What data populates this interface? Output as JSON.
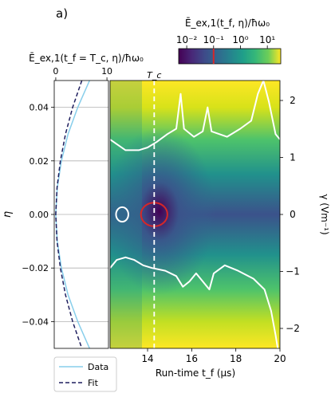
{
  "panel_label": "a)",
  "colorbar": {
    "title": "Ē_ex,1(t_f, η)/ħω₀",
    "tick_labels": [
      "10⁻²",
      "10⁻¹",
      "10⁰",
      "10¹"
    ],
    "tick_exponents": [
      -2,
      -1,
      0,
      1
    ],
    "range_exponent": [
      -2.3,
      1.5
    ],
    "marker_exponent": -1.0,
    "marker_color": "#d62728"
  },
  "chart_data": [
    {
      "type": "line",
      "title": "Ē_ex,1(t_f = T_c, η)/ħω₀",
      "xlabel": "",
      "ylabel": "η",
      "xlim": [
        -0.3,
        10.3
      ],
      "ylim": [
        -0.05,
        0.05
      ],
      "x_ticks": [
        0,
        10
      ],
      "y_ticks": [
        0.04,
        0.02,
        0.0,
        -0.02,
        -0.04
      ],
      "y_tick_labels": [
        "0.04",
        "0.02",
        "0.00",
        "−0.02",
        "−0.04"
      ],
      "grid": "horizontal",
      "legend_position": "below",
      "series": [
        {
          "name": "Data",
          "color": "#87ceeb",
          "style": "solid",
          "points": [
            [
              0.0,
              0.0
            ],
            [
              0.3,
              0.01
            ],
            [
              1.1,
              0.02
            ],
            [
              2.4,
              0.03
            ],
            [
              4.3,
              0.04
            ],
            [
              6.6,
              0.05
            ],
            [
              0.3,
              -0.01
            ],
            [
              1.1,
              -0.02
            ],
            [
              2.4,
              -0.03
            ],
            [
              4.3,
              -0.04
            ],
            [
              6.6,
              -0.05
            ]
          ]
        },
        {
          "name": "Fit",
          "color": "#1f1f5f",
          "style": "dashed",
          "points": [
            [
              5.1,
              0.05
            ],
            [
              3.3,
              0.04
            ],
            [
              1.9,
              0.03
            ],
            [
              0.9,
              0.02
            ],
            [
              0.25,
              0.01
            ],
            [
              0.0,
              0.0
            ],
            [
              0.25,
              -0.01
            ],
            [
              0.9,
              -0.02
            ],
            [
              1.9,
              -0.03
            ],
            [
              3.3,
              -0.04
            ],
            [
              5.1,
              -0.05
            ]
          ]
        }
      ]
    },
    {
      "type": "heatmap",
      "xlabel": "Run-time t_f (μs)",
      "ylabel_right": "γ (Vm⁻¹)",
      "xlim": [
        12.3,
        20
      ],
      "x_ticks": [
        14,
        16,
        18,
        20
      ],
      "ylim": [
        -0.05,
        0.05
      ],
      "right_ylim": [
        -2.35,
        2.35
      ],
      "right_ticks": [
        2,
        1,
        0,
        -1,
        -2
      ],
      "right_tick_labels": [
        "2",
        "1",
        "0",
        "−1",
        "−2"
      ],
      "colormap": "viridis",
      "vline": {
        "x": 14.3,
        "label": "T_c",
        "style": "dashed",
        "color": "#ffffff"
      },
      "contours": [
        {
          "level": "white",
          "color": "#ffffff",
          "points": [
            [
              12.3,
              0.028
            ],
            [
              13.0,
              0.024
            ],
            [
              13.6,
              0.024
            ],
            [
              14.0,
              0.025
            ],
            [
              14.4,
              0.027
            ],
            [
              14.9,
              0.03
            ],
            [
              15.3,
              0.032
            ],
            [
              15.5,
              0.045
            ],
            [
              15.65,
              0.032
            ],
            [
              16.1,
              0.029
            ],
            [
              16.5,
              0.031
            ],
            [
              16.72,
              0.04
            ],
            [
              16.9,
              0.031
            ],
            [
              17.6,
              0.029
            ],
            [
              18.2,
              0.032
            ],
            [
              18.7,
              0.035
            ],
            [
              19.0,
              0.045
            ],
            [
              19.25,
              0.05
            ],
            [
              19.5,
              0.042
            ],
            [
              19.8,
              0.03
            ],
            [
              20.0,
              0.028
            ]
          ]
        },
        {
          "level": "white",
          "color": "#ffffff",
          "points": [
            [
              12.3,
              -0.02
            ],
            [
              12.6,
              -0.017
            ],
            [
              13.0,
              -0.016
            ],
            [
              13.4,
              -0.017
            ],
            [
              13.8,
              -0.019
            ],
            [
              14.2,
              -0.02
            ],
            [
              14.8,
              -0.021
            ],
            [
              15.3,
              -0.023
            ],
            [
              15.6,
              -0.027
            ],
            [
              15.9,
              -0.025
            ],
            [
              16.2,
              -0.022
            ],
            [
              16.5,
              -0.025
            ],
            [
              16.8,
              -0.028
            ],
            [
              17.0,
              -0.022
            ],
            [
              17.5,
              -0.019
            ],
            [
              18.1,
              -0.021
            ],
            [
              18.8,
              -0.024
            ],
            [
              19.3,
              -0.028
            ],
            [
              19.6,
              -0.036
            ],
            [
              19.8,
              -0.045
            ],
            [
              19.9,
              -0.05
            ]
          ]
        },
        {
          "level": "white-loop",
          "color": "#ffffff",
          "center": [
            12.85,
            0.0
          ],
          "radius": [
            0.28,
            0.0027
          ]
        },
        {
          "level": "red-loop",
          "color": "#d62728",
          "center": [
            14.3,
            0.0
          ],
          "radius": [
            0.6,
            0.0044
          ]
        }
      ]
    }
  ]
}
